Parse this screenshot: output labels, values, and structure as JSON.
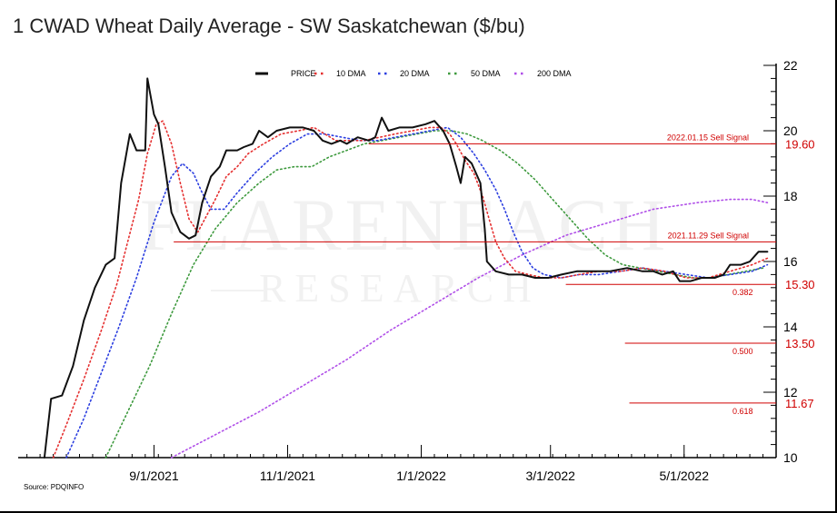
{
  "title": "1 CWAD Wheat Daily Average - SW Saskatchewan ($/bu)",
  "source": "Source: PDQINFO",
  "watermark": {
    "line1": "FLARENEACH",
    "line2": "RESEARCH"
  },
  "colors": {
    "price": "#111111",
    "dma10": "#e53030",
    "dma20": "#2b3ee0",
    "dma50": "#3e9a3e",
    "dma200": "#b04fe8",
    "annotation": "#d00000"
  },
  "chart_data": {
    "type": "line",
    "title": "1 CWAD Wheat Daily Average - SW Saskatchewan ($/bu)",
    "xlabel": "",
    "ylabel": "$/bu",
    "x_unit": "days since 2021-07-01",
    "xlim": [
      0,
      346
    ],
    "ylim": [
      10,
      22
    ],
    "y_ticks": [
      10,
      12,
      14,
      16,
      18,
      20,
      22
    ],
    "x_ticks": [
      {
        "x": 62,
        "label": "9/1/2021"
      },
      {
        "x": 123,
        "label": "11/1/2021"
      },
      {
        "x": 184,
        "label": "1/1/2022"
      },
      {
        "x": 243,
        "label": "3/1/2022"
      },
      {
        "x": 304,
        "label": "5/1/2022"
      }
    ],
    "legend": [
      {
        "name": "PRICE",
        "style": "solid"
      },
      {
        "name": "10 DMA",
        "style": "dotted"
      },
      {
        "name": "20 DMA",
        "style": "dotted"
      },
      {
        "name": "50 DMA",
        "style": "dotted"
      },
      {
        "name": "200 DMA",
        "style": "dotted"
      }
    ],
    "legend_position": "top-center",
    "series": [
      {
        "name": "PRICE",
        "points": [
          [
            12,
            10
          ],
          [
            15,
            11.8
          ],
          [
            20,
            11.9
          ],
          [
            25,
            12.8
          ],
          [
            30,
            14.2
          ],
          [
            35,
            15.2
          ],
          [
            40,
            15.9
          ],
          [
            44,
            16.1
          ],
          [
            47,
            18.4
          ],
          [
            51,
            19.9
          ],
          [
            54,
            19.4
          ],
          [
            58,
            19.4
          ],
          [
            59,
            21.6
          ],
          [
            62,
            20.5
          ],
          [
            64,
            20.2
          ],
          [
            67,
            18.9
          ],
          [
            70,
            17.5
          ],
          [
            74,
            16.9
          ],
          [
            78,
            16.7
          ],
          [
            81,
            16.8
          ],
          [
            84,
            17.8
          ],
          [
            88,
            18.6
          ],
          [
            92,
            18.9
          ],
          [
            95,
            19.4
          ],
          [
            100,
            19.4
          ],
          [
            103,
            19.5
          ],
          [
            107,
            19.6
          ],
          [
            110,
            20.0
          ],
          [
            114,
            19.8
          ],
          [
            118,
            20.0
          ],
          [
            124,
            20.1
          ],
          [
            130,
            20.1
          ],
          [
            135,
            20.0
          ],
          [
            139,
            19.7
          ],
          [
            143,
            19.6
          ],
          [
            147,
            19.7
          ],
          [
            150,
            19.6
          ],
          [
            155,
            19.8
          ],
          [
            160,
            19.7
          ],
          [
            163,
            19.8
          ],
          [
            166,
            20.4
          ],
          [
            169,
            20.0
          ],
          [
            174,
            20.1
          ],
          [
            180,
            20.1
          ],
          [
            186,
            20.2
          ],
          [
            190,
            20.3
          ],
          [
            194,
            20.0
          ],
          [
            197,
            19.6
          ],
          [
            200,
            18.9
          ],
          [
            202,
            18.4
          ],
          [
            204,
            19.2
          ],
          [
            207,
            19.0
          ],
          [
            211,
            18.4
          ],
          [
            213,
            17.0
          ],
          [
            214,
            16.0
          ],
          [
            218,
            15.7
          ],
          [
            224,
            15.6
          ],
          [
            230,
            15.6
          ],
          [
            236,
            15.5
          ],
          [
            242,
            15.5
          ],
          [
            248,
            15.6
          ],
          [
            255,
            15.7
          ],
          [
            262,
            15.7
          ],
          [
            270,
            15.7
          ],
          [
            278,
            15.8
          ],
          [
            285,
            15.7
          ],
          [
            290,
            15.7
          ],
          [
            294,
            15.6
          ],
          [
            299,
            15.7
          ],
          [
            302,
            15.4
          ],
          [
            307,
            15.4
          ],
          [
            312,
            15.5
          ],
          [
            318,
            15.5
          ],
          [
            322,
            15.6
          ],
          [
            325,
            15.9
          ],
          [
            330,
            15.9
          ],
          [
            334,
            16.0
          ],
          [
            338,
            16.3
          ],
          [
            342,
            16.3
          ]
        ]
      },
      {
        "name": "10 DMA",
        "points": [
          [
            16,
            10
          ],
          [
            22,
            11
          ],
          [
            30,
            12.4
          ],
          [
            38,
            13.9
          ],
          [
            45,
            15.3
          ],
          [
            50,
            16.6
          ],
          [
            55,
            17.9
          ],
          [
            59,
            19.3
          ],
          [
            63,
            20.2
          ],
          [
            66,
            20.3
          ],
          [
            70,
            19.6
          ],
          [
            74,
            18.4
          ],
          [
            78,
            17.3
          ],
          [
            82,
            16.9
          ],
          [
            86,
            17.4
          ],
          [
            90,
            17.9
          ],
          [
            95,
            18.6
          ],
          [
            100,
            18.9
          ],
          [
            105,
            19.3
          ],
          [
            112,
            19.6
          ],
          [
            120,
            19.9
          ],
          [
            128,
            20.0
          ],
          [
            135,
            20.1
          ],
          [
            140,
            19.9
          ],
          [
            145,
            19.7
          ],
          [
            152,
            19.7
          ],
          [
            158,
            19.7
          ],
          [
            165,
            19.8
          ],
          [
            172,
            19.9
          ],
          [
            180,
            20.0
          ],
          [
            188,
            20.1
          ],
          [
            193,
            20.1
          ],
          [
            197,
            19.9
          ],
          [
            200,
            19.6
          ],
          [
            204,
            19.1
          ],
          [
            208,
            18.7
          ],
          [
            212,
            18.0
          ],
          [
            215,
            17.3
          ],
          [
            218,
            16.6
          ],
          [
            222,
            16.1
          ],
          [
            227,
            15.7
          ],
          [
            233,
            15.6
          ],
          [
            240,
            15.5
          ],
          [
            248,
            15.5
          ],
          [
            256,
            15.6
          ],
          [
            265,
            15.7
          ],
          [
            275,
            15.7
          ],
          [
            285,
            15.8
          ],
          [
            295,
            15.7
          ],
          [
            305,
            15.5
          ],
          [
            315,
            15.5
          ],
          [
            325,
            15.7
          ],
          [
            335,
            15.9
          ],
          [
            342,
            16.1
          ]
        ]
      },
      {
        "name": "20 DMA",
        "points": [
          [
            22,
            10
          ],
          [
            30,
            11.2
          ],
          [
            38,
            12.6
          ],
          [
            46,
            14.0
          ],
          [
            54,
            15.5
          ],
          [
            62,
            17.2
          ],
          [
            70,
            18.6
          ],
          [
            75,
            19.0
          ],
          [
            80,
            18.7
          ],
          [
            84,
            18.1
          ],
          [
            88,
            17.6
          ],
          [
            94,
            17.6
          ],
          [
            100,
            18.1
          ],
          [
            108,
            18.7
          ],
          [
            116,
            19.2
          ],
          [
            124,
            19.6
          ],
          [
            132,
            19.9
          ],
          [
            140,
            19.9
          ],
          [
            148,
            19.8
          ],
          [
            156,
            19.7
          ],
          [
            164,
            19.7
          ],
          [
            172,
            19.8
          ],
          [
            180,
            19.9
          ],
          [
            188,
            20.0
          ],
          [
            196,
            20.1
          ],
          [
            202,
            19.8
          ],
          [
            208,
            19.3
          ],
          [
            213,
            18.8
          ],
          [
            218,
            18.2
          ],
          [
            222,
            17.6
          ],
          [
            226,
            16.9
          ],
          [
            230,
            16.3
          ],
          [
            235,
            15.8
          ],
          [
            240,
            15.6
          ],
          [
            248,
            15.5
          ],
          [
            256,
            15.6
          ],
          [
            265,
            15.6
          ],
          [
            275,
            15.7
          ],
          [
            285,
            15.8
          ],
          [
            295,
            15.7
          ],
          [
            305,
            15.6
          ],
          [
            315,
            15.5
          ],
          [
            325,
            15.6
          ],
          [
            335,
            15.7
          ],
          [
            342,
            15.9
          ]
        ]
      },
      {
        "name": "50 DMA",
        "points": [
          [
            40,
            10
          ],
          [
            50,
            11.4
          ],
          [
            60,
            12.8
          ],
          [
            70,
            14.4
          ],
          [
            80,
            15.9
          ],
          [
            90,
            17.0
          ],
          [
            100,
            17.8
          ],
          [
            110,
            18.4
          ],
          [
            118,
            18.8
          ],
          [
            126,
            18.9
          ],
          [
            134,
            18.9
          ],
          [
            142,
            19.2
          ],
          [
            150,
            19.4
          ],
          [
            158,
            19.6
          ],
          [
            166,
            19.7
          ],
          [
            174,
            19.8
          ],
          [
            182,
            19.9
          ],
          [
            190,
            20.0
          ],
          [
            198,
            20.0
          ],
          [
            205,
            19.9
          ],
          [
            212,
            19.7
          ],
          [
            220,
            19.4
          ],
          [
            228,
            19.0
          ],
          [
            236,
            18.5
          ],
          [
            244,
            17.9
          ],
          [
            252,
            17.3
          ],
          [
            260,
            16.7
          ],
          [
            268,
            16.2
          ],
          [
            276,
            15.9
          ],
          [
            284,
            15.8
          ],
          [
            292,
            15.7
          ],
          [
            300,
            15.6
          ],
          [
            308,
            15.5
          ],
          [
            316,
            15.5
          ],
          [
            324,
            15.6
          ],
          [
            332,
            15.7
          ],
          [
            340,
            15.8
          ]
        ]
      },
      {
        "name": "200 DMA",
        "points": [
          [
            70,
            10
          ],
          [
            90,
            10.7
          ],
          [
            110,
            11.4
          ],
          [
            130,
            12.2
          ],
          [
            150,
            13.0
          ],
          [
            170,
            13.9
          ],
          [
            190,
            14.7
          ],
          [
            210,
            15.5
          ],
          [
            230,
            16.2
          ],
          [
            250,
            16.8
          ],
          [
            270,
            17.2
          ],
          [
            290,
            17.6
          ],
          [
            310,
            17.8
          ],
          [
            325,
            17.9
          ],
          [
            335,
            17.9
          ],
          [
            342,
            17.8
          ]
        ]
      }
    ],
    "annotations": [
      {
        "label": "2022.01.15  Sell Signal",
        "value": "19.60",
        "y": 19.6,
        "x_start": 160
      },
      {
        "label": "2021.11.29 Sell Signal",
        "value": "",
        "y": 16.6,
        "x_start": 71
      },
      {
        "label": "0.382",
        "value": "15.30",
        "y": 15.3,
        "x_start": 250
      },
      {
        "label": "0.500",
        "value": "13.50",
        "y": 13.5,
        "x_start": 277
      },
      {
        "label": "0.618",
        "value": "11.67",
        "y": 11.67,
        "x_start": 279
      }
    ]
  }
}
